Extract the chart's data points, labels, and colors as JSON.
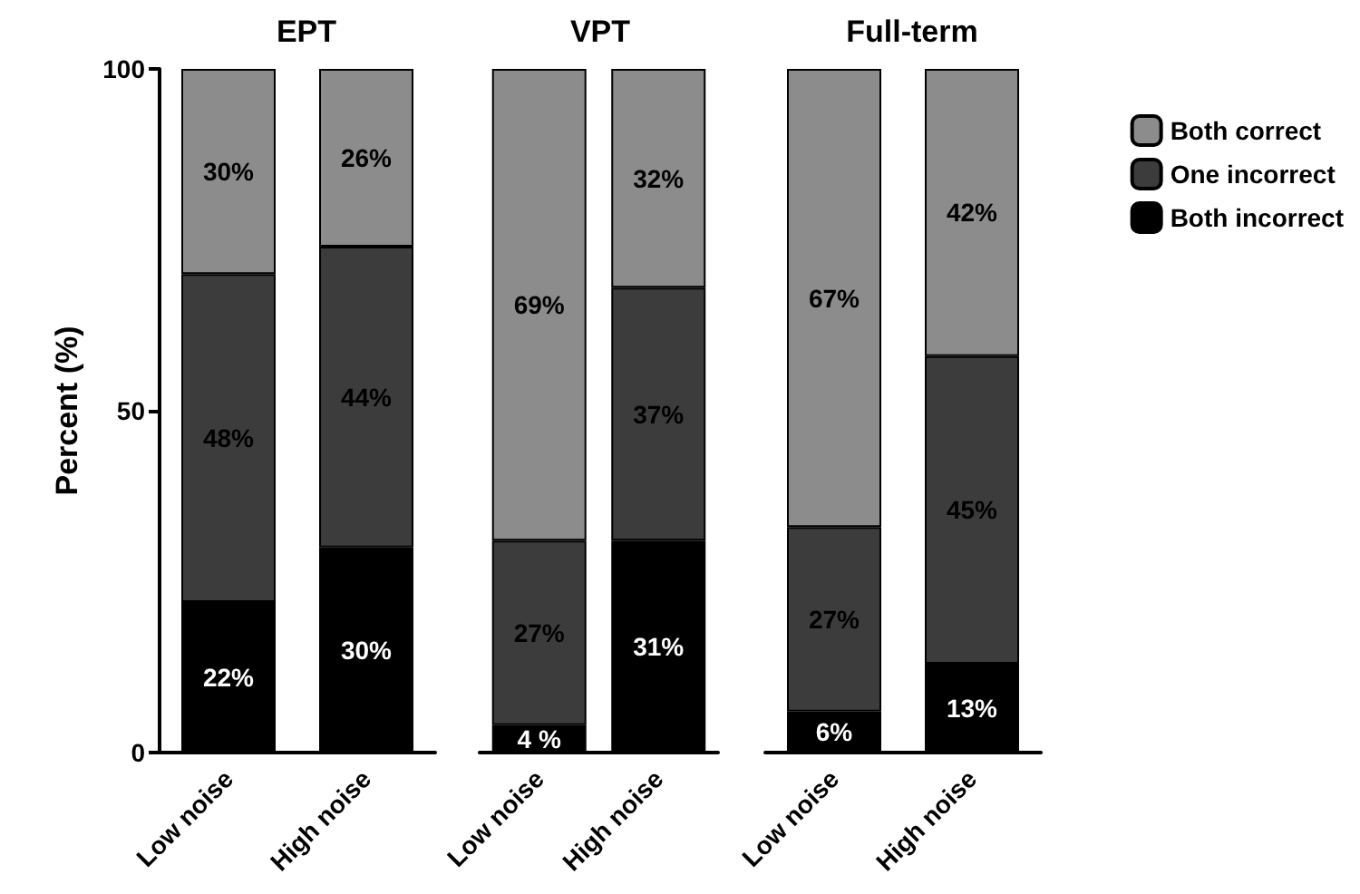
{
  "chart_data": [
    {
      "type": "bar",
      "title": "EPT",
      "ylabel": "Percent (%)",
      "categories": [
        "Low noise",
        "High noise"
      ],
      "stacked": true,
      "ylim": [
        0,
        100
      ],
      "yticks": [
        0,
        50,
        100
      ],
      "grid": false,
      "legend": false,
      "series": [
        {
          "color": "#000000",
          "values": [
            22,
            30
          ],
          "value_labels": [
            "22%",
            "30%"
          ]
        },
        {
          "color": "#3c3c3c",
          "values": [
            48,
            44
          ],
          "value_labels": [
            "48%",
            "44%"
          ]
        },
        {
          "color": "#8c8c8c",
          "values": [
            30,
            26
          ],
          "value_labels": [
            "30%",
            "26%"
          ]
        }
      ]
    },
    {
      "type": "bar",
      "title": "VPT",
      "categories": [
        "Low noise",
        "High noise"
      ],
      "stacked": true,
      "ylim": [
        0,
        100
      ],
      "yticks": [
        0,
        50,
        100
      ],
      "grid": false,
      "legend": false,
      "tick_labels": "x",
      "series": [
        {
          "color": "#000000",
          "values": [
            4,
            31
          ],
          "value_labels": [
            "4 %",
            "31%"
          ]
        },
        {
          "color": "#3c3c3c",
          "values": [
            27,
            37
          ],
          "value_labels": [
            "27%",
            "37%"
          ]
        },
        {
          "color": "#8c8c8c",
          "values": [
            69,
            32
          ],
          "value_labels": [
            "69%",
            "32%"
          ]
        }
      ]
    },
    {
      "type": "bar",
      "title": "Full-term",
      "categories": [
        "Low noise",
        "High noise"
      ],
      "stacked": true,
      "ylim": [
        0,
        100
      ],
      "yticks": [
        0,
        50,
        100
      ],
      "grid": false,
      "legend": "right",
      "tick_labels": "x",
      "series": [
        {
          "name": "Both incorrect",
          "color": "#000000",
          "values": [
            6,
            13
          ],
          "value_labels": [
            "6%",
            "13%"
          ]
        },
        {
          "name": "One incorrect",
          "color": "#3c3c3c",
          "values": [
            27,
            45
          ],
          "value_labels": [
            "27%",
            "45%"
          ]
        },
        {
          "name": "Both correct",
          "color": "#8c8c8c",
          "values": [
            67,
            42
          ],
          "value_labels": [
            "67%",
            "42%"
          ]
        }
      ]
    }
  ]
}
